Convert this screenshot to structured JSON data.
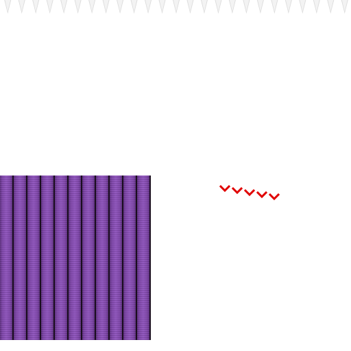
{
  "scene": {
    "background_color": "#ffffff",
    "ceiling_spikes": {
      "count": 25,
      "color": "#f3f3f3",
      "shadow_color": "#dcdcdc",
      "icon": "spike-icon"
    },
    "pillar_block": {
      "pillar_count": 11,
      "pillar_color": "#8f54bd",
      "gap_color": "#1a0d1f"
    },
    "chevrons": {
      "count": 5,
      "color": "#e00000",
      "icon": "chevron-down-icon"
    }
  }
}
